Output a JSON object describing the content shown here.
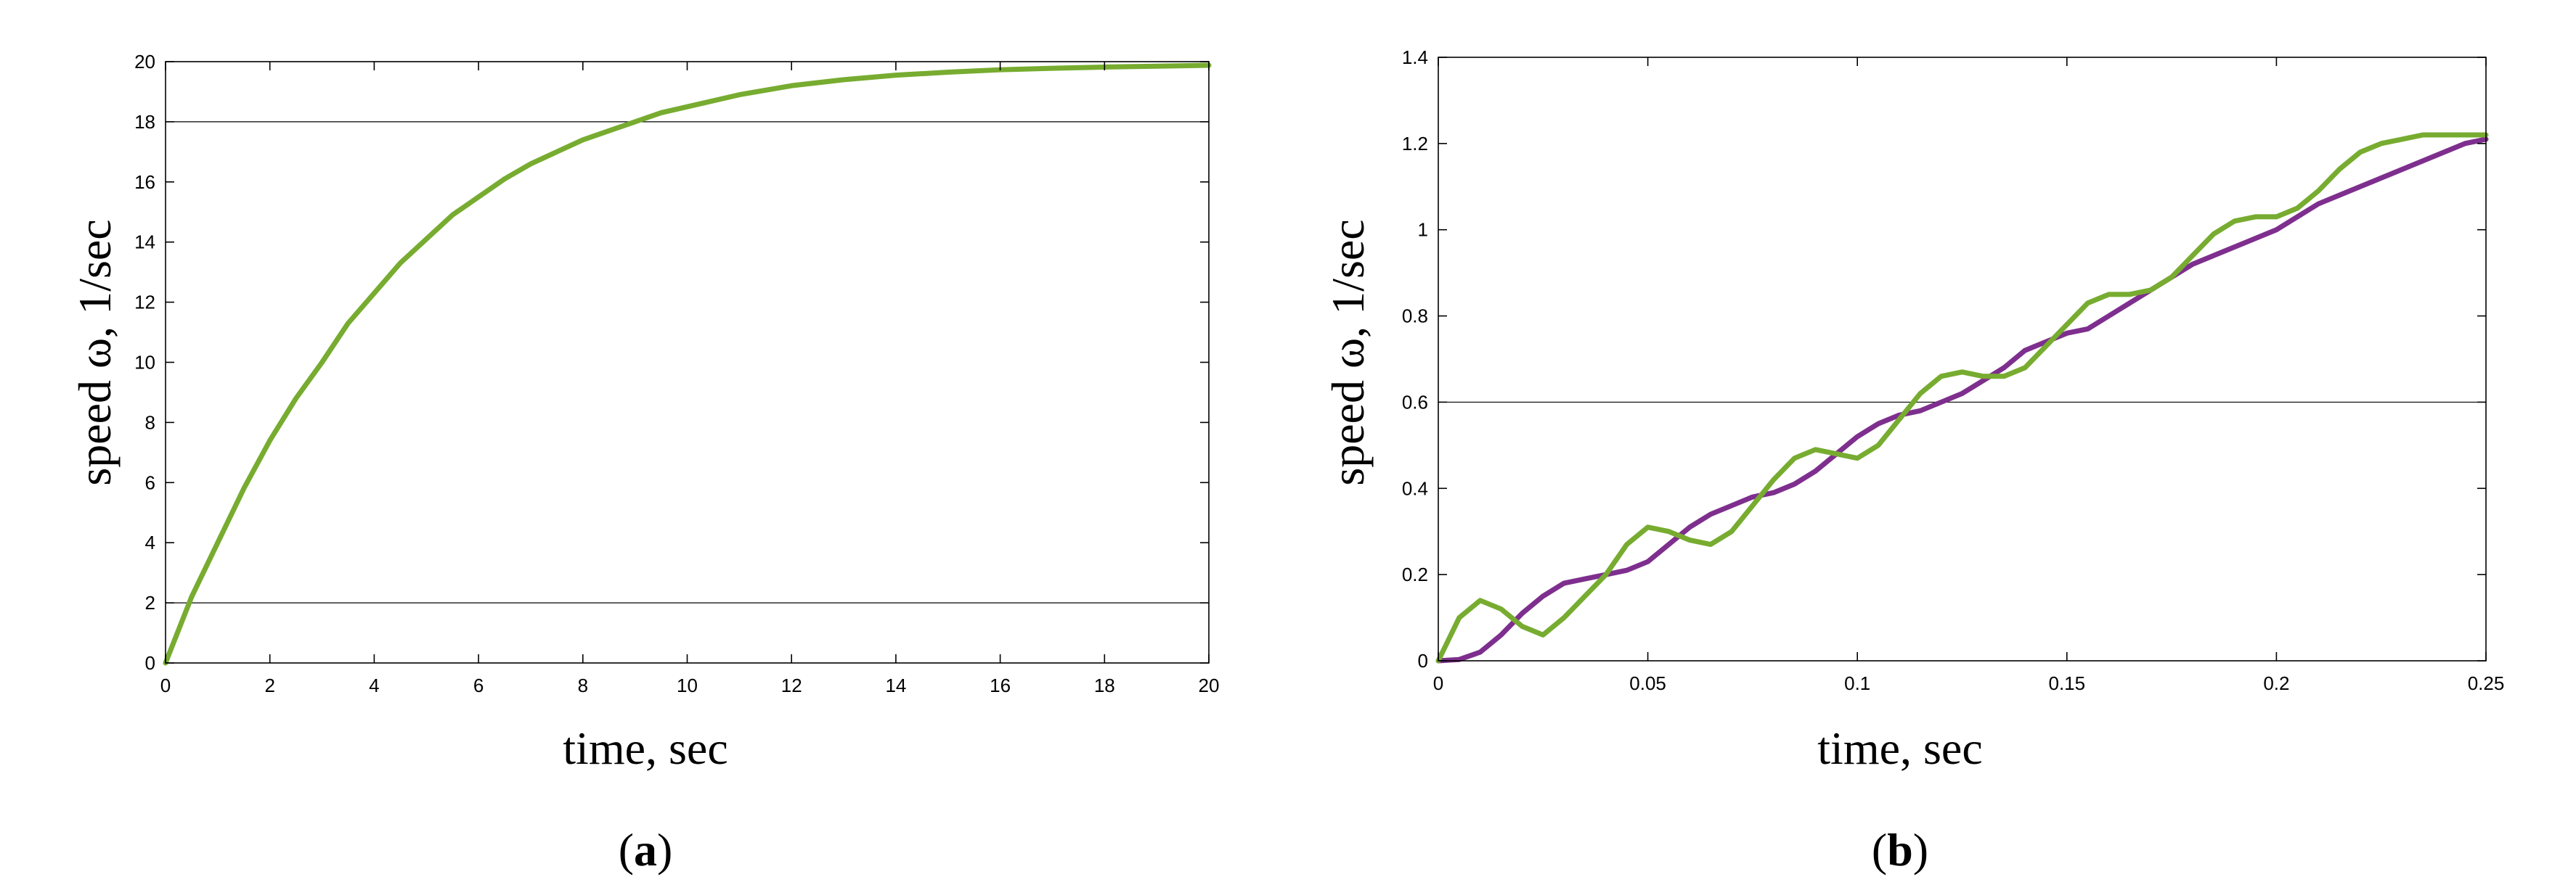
{
  "chart_data": [
    {
      "type": "line",
      "panel_label": "a",
      "xlabel": "time, sec",
      "ylabel": "speed ω, 1/sec",
      "xlim": [
        0,
        20
      ],
      "ylim": [
        0,
        20
      ],
      "xticks": [
        0,
        2,
        4,
        6,
        8,
        10,
        12,
        14,
        16,
        18,
        20
      ],
      "yticks": [
        0,
        2,
        4,
        6,
        8,
        10,
        12,
        14,
        16,
        18,
        20
      ],
      "xtick_labels": [
        "0",
        "2",
        "4",
        "6",
        "8",
        "10",
        "12",
        "14",
        "16",
        "18",
        "20"
      ],
      "ytick_labels": [
        "0",
        "2",
        "4",
        "6",
        "8",
        "10",
        "12",
        "14",
        "16",
        "18",
        "20"
      ],
      "grid": false,
      "reference_lines_y": [
        2,
        18
      ],
      "series": [
        {
          "color": "#77ac30",
          "x": [
            0,
            0.5,
            1,
            1.5,
            2,
            2.5,
            3,
            3.5,
            4,
            4.5,
            5,
            5.5,
            6,
            6.5,
            7,
            7.5,
            8,
            8.5,
            9,
            9.5,
            10,
            11,
            12,
            13,
            14,
            15,
            16,
            17,
            18,
            19,
            20
          ],
          "y": [
            0,
            2.2,
            4.0,
            5.8,
            7.4,
            8.8,
            10.0,
            11.3,
            12.3,
            13.3,
            14.1,
            14.9,
            15.5,
            16.1,
            16.6,
            17.0,
            17.4,
            17.7,
            18.0,
            18.3,
            18.5,
            18.9,
            19.2,
            19.4,
            19.55,
            19.65,
            19.73,
            19.78,
            19.82,
            19.85,
            19.88
          ]
        }
      ]
    },
    {
      "type": "line",
      "panel_label": "b",
      "xlabel": "time, sec",
      "ylabel": "speed ω, 1/sec",
      "xlim": [
        0,
        0.25
      ],
      "ylim": [
        0,
        1.4
      ],
      "xticks": [
        0,
        0.05,
        0.1,
        0.15,
        0.2,
        0.25
      ],
      "yticks": [
        0,
        0.2,
        0.4,
        0.6,
        0.8,
        1,
        1.2,
        1.4
      ],
      "xtick_labels": [
        "0",
        "0.05",
        "0.1",
        "0.15",
        "0.2",
        "0.25"
      ],
      "ytick_labels": [
        "0",
        "0.2",
        "0.4",
        "0.6",
        "0.8",
        "1",
        "1.2",
        "1.4"
      ],
      "grid": false,
      "reference_lines_y": [
        0.6
      ],
      "series": [
        {
          "color": "#7e2f8e",
          "x": [
            0,
            0.005,
            0.01,
            0.015,
            0.02,
            0.025,
            0.03,
            0.035,
            0.04,
            0.045,
            0.05,
            0.055,
            0.06,
            0.065,
            0.07,
            0.075,
            0.08,
            0.085,
            0.09,
            0.095,
            0.1,
            0.105,
            0.11,
            0.115,
            0.12,
            0.125,
            0.13,
            0.135,
            0.14,
            0.145,
            0.15,
            0.155,
            0.16,
            0.165,
            0.17,
            0.175,
            0.18,
            0.185,
            0.19,
            0.195,
            0.2,
            0.205,
            0.21,
            0.215,
            0.22,
            0.225,
            0.23,
            0.235,
            0.24,
            0.245,
            0.25
          ],
          "y": [
            0,
            0.003,
            0.02,
            0.06,
            0.11,
            0.15,
            0.18,
            0.19,
            0.2,
            0.21,
            0.23,
            0.27,
            0.31,
            0.34,
            0.36,
            0.38,
            0.39,
            0.41,
            0.44,
            0.48,
            0.52,
            0.55,
            0.57,
            0.58,
            0.6,
            0.62,
            0.65,
            0.68,
            0.72,
            0.74,
            0.76,
            0.77,
            0.8,
            0.83,
            0.86,
            0.89,
            0.92,
            0.94,
            0.96,
            0.98,
            1.0,
            1.03,
            1.06,
            1.08,
            1.1,
            1.12,
            1.14,
            1.16,
            1.18,
            1.2,
            1.21
          ]
        },
        {
          "color": "#77ac30",
          "x": [
            0,
            0.005,
            0.01,
            0.015,
            0.02,
            0.025,
            0.03,
            0.035,
            0.04,
            0.045,
            0.05,
            0.055,
            0.06,
            0.065,
            0.07,
            0.075,
            0.08,
            0.085,
            0.09,
            0.095,
            0.1,
            0.105,
            0.11,
            0.115,
            0.12,
            0.125,
            0.13,
            0.135,
            0.14,
            0.145,
            0.15,
            0.155,
            0.16,
            0.165,
            0.17,
            0.175,
            0.18,
            0.185,
            0.19,
            0.195,
            0.2,
            0.205,
            0.21,
            0.215,
            0.22,
            0.225,
            0.23,
            0.235,
            0.24,
            0.245,
            0.25
          ],
          "y": [
            0,
            0.1,
            0.14,
            0.12,
            0.08,
            0.06,
            0.1,
            0.15,
            0.2,
            0.27,
            0.31,
            0.3,
            0.28,
            0.27,
            0.3,
            0.36,
            0.42,
            0.47,
            0.49,
            0.48,
            0.47,
            0.5,
            0.56,
            0.62,
            0.66,
            0.67,
            0.66,
            0.66,
            0.68,
            0.73,
            0.78,
            0.83,
            0.85,
            0.85,
            0.86,
            0.89,
            0.94,
            0.99,
            1.02,
            1.03,
            1.03,
            1.05,
            1.09,
            1.14,
            1.18,
            1.2,
            1.21,
            1.22,
            1.22,
            1.22,
            1.22
          ]
        }
      ]
    }
  ]
}
